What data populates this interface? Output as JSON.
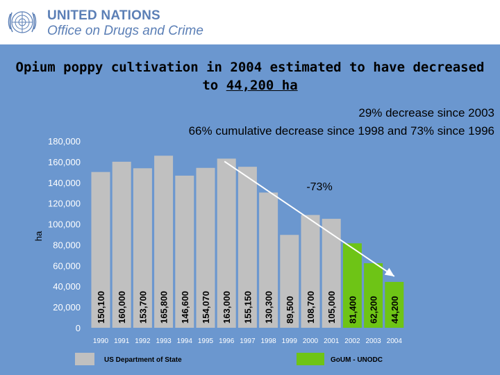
{
  "header": {
    "org_line1": "UNITED NATIONS",
    "org_line2": "Office on Drugs and Crime"
  },
  "slide": {
    "title_line1": "Opium poppy cultivation in 2004 estimated to have decreased",
    "title_line2_prefix": "to ",
    "title_line2_value": "44,200 ha",
    "subtitle_line1": "29% decrease since 2003",
    "subtitle_line2": "66% cumulative decrease since 1998 and 73% since 1996"
  },
  "colors": {
    "background": "#6b97cf",
    "bar_us": "#c0c0c0",
    "bar_gou": "#6ec416",
    "brand": "#5b7fb6"
  },
  "chart_data": {
    "type": "bar",
    "ylabel": "ha",
    "xlabel": "",
    "ylim": [
      0,
      180000
    ],
    "yticks": [
      "0",
      "20,000",
      "40,000",
      "60,000",
      "80,000",
      "100,000",
      "120,000",
      "140,000",
      "160,000",
      "180,000"
    ],
    "categories": [
      "1990",
      "1991",
      "1992",
      "1993",
      "1994",
      "1995",
      "1996",
      "1997",
      "1998",
      "1999",
      "2000",
      "2001",
      "2002",
      "2003",
      "2004"
    ],
    "values": [
      150100,
      160000,
      153700,
      165800,
      146600,
      154070,
      163000,
      155150,
      130300,
      89500,
      108700,
      105000,
      81400,
      62200,
      44200
    ],
    "value_labels": [
      "150,100",
      "160,000",
      "153,700",
      "165,800",
      "146,600",
      "154,070",
      "163,000",
      "155,150",
      "130,300",
      "89,500",
      "108,700",
      "105,000",
      "81,400",
      "62,200",
      "44,200"
    ],
    "sources": [
      "US",
      "US",
      "US",
      "US",
      "US",
      "US",
      "US",
      "US",
      "US",
      "US",
      "US",
      "US",
      "GOU",
      "GOU",
      "GOU"
    ],
    "legend": [
      {
        "key": "US",
        "label": "US Department of State"
      },
      {
        "key": "GOU",
        "label": "GoUM - UNODC"
      }
    ],
    "trend_annotation": {
      "from": "1996",
      "to": "2004",
      "label": "-73%"
    }
  }
}
